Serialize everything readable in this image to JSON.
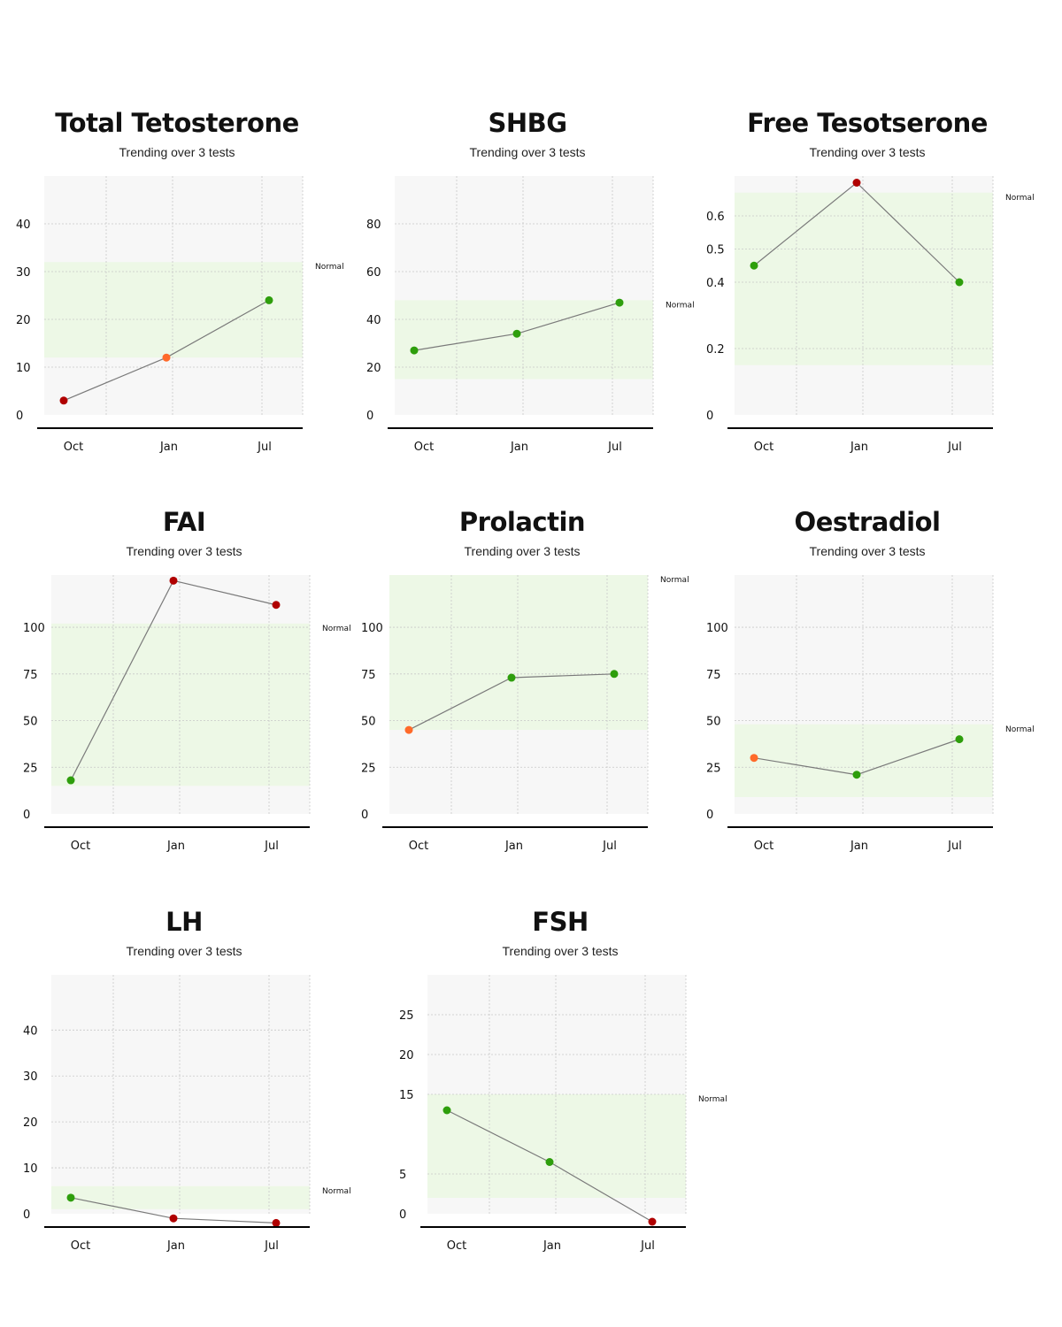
{
  "colors": {
    "plot_bg": "#f7f7f7",
    "normal_band": "#edf8e6",
    "grid": "#c8c8c8",
    "line": "#7a7a7a",
    "axis": "#000000",
    "status": {
      "normal": "#2e9e0c",
      "borderline": "#ff6a2a",
      "high": "#b00000"
    }
  },
  "chart_data": [
    {
      "type": "line",
      "title": "Total Tetosterone",
      "subtitle": "Trending over 3 tests",
      "categories": [
        "Oct",
        "Jan",
        "Jul"
      ],
      "yticks": [
        0,
        10,
        20,
        30,
        40
      ],
      "ylim": [
        0,
        50
      ],
      "grid": true,
      "normal_range": [
        12,
        32
      ],
      "normal_label": "Normal",
      "points": [
        {
          "x": "Oct",
          "y": 3,
          "status": "high"
        },
        {
          "x": "Jan",
          "y": 12,
          "status": "borderline"
        },
        {
          "x": "Jul",
          "y": 24,
          "status": "normal"
        }
      ]
    },
    {
      "type": "line",
      "title": "SHBG",
      "subtitle": "Trending over 3 tests",
      "categories": [
        "Oct",
        "Jan",
        "Jul"
      ],
      "yticks": [
        0,
        20,
        40,
        60,
        80
      ],
      "ylim": [
        0,
        100
      ],
      "grid": true,
      "normal_range": [
        15,
        48
      ],
      "normal_label": "Normal",
      "points": [
        {
          "x": "Oct",
          "y": 27,
          "status": "normal"
        },
        {
          "x": "Jan",
          "y": 34,
          "status": "normal"
        },
        {
          "x": "Jul",
          "y": 47,
          "status": "normal"
        }
      ]
    },
    {
      "type": "line",
      "title": "Free Tesotserone",
      "subtitle": "Trending over 3 tests",
      "categories": [
        "Oct",
        "Jan",
        "Jul"
      ],
      "yticks": [
        0,
        0.2,
        0.4,
        0.5,
        0.6
      ],
      "ylim": [
        0,
        0.72
      ],
      "grid": true,
      "normal_range": [
        0.15,
        0.67
      ],
      "normal_label": "Normal",
      "points": [
        {
          "x": "Oct",
          "y": 0.45,
          "status": "normal"
        },
        {
          "x": "Jan",
          "y": 0.7,
          "status": "high"
        },
        {
          "x": "Jul",
          "y": 0.4,
          "status": "normal"
        }
      ]
    },
    {
      "type": "line",
      "title": "FAI",
      "subtitle": "Trending over 3 tests",
      "categories": [
        "Oct",
        "Jan",
        "Jul"
      ],
      "yticks": [
        0,
        25,
        50,
        75,
        100
      ],
      "ylim": [
        0,
        128
      ],
      "grid": true,
      "normal_range": [
        15,
        102
      ],
      "normal_label": "Normal",
      "points": [
        {
          "x": "Oct",
          "y": 18,
          "status": "normal"
        },
        {
          "x": "Jan",
          "y": 125,
          "status": "high"
        },
        {
          "x": "Jul",
          "y": 112,
          "status": "high"
        }
      ]
    },
    {
      "type": "line",
      "title": "Prolactin",
      "subtitle": "Trending over 3 tests",
      "categories": [
        "Oct",
        "Jan",
        "Jul"
      ],
      "yticks": [
        0,
        25,
        50,
        75,
        100
      ],
      "ylim": [
        0,
        128
      ],
      "grid": true,
      "normal_range": [
        45,
        128
      ],
      "normal_label": "Normal",
      "points": [
        {
          "x": "Oct",
          "y": 45,
          "status": "borderline"
        },
        {
          "x": "Jan",
          "y": 73,
          "status": "normal"
        },
        {
          "x": "Jul",
          "y": 75,
          "status": "normal"
        }
      ]
    },
    {
      "type": "line",
      "title": "Oestradiol",
      "subtitle": "Trending over 3 tests",
      "categories": [
        "Oct",
        "Jan",
        "Jul"
      ],
      "yticks": [
        0,
        25,
        50,
        75,
        100
      ],
      "ylim": [
        0,
        128
      ],
      "grid": true,
      "normal_range": [
        9,
        48
      ],
      "normal_label": "Normal",
      "points": [
        {
          "x": "Oct",
          "y": 30,
          "status": "borderline"
        },
        {
          "x": "Jan",
          "y": 21,
          "status": "normal"
        },
        {
          "x": "Jul",
          "y": 40,
          "status": "normal"
        }
      ]
    },
    {
      "type": "line",
      "title": "LH",
      "subtitle": "Trending over 3 tests",
      "categories": [
        "Oct",
        "Jan",
        "Jul"
      ],
      "yticks": [
        0,
        10,
        20,
        30,
        40
      ],
      "ylim": [
        0,
        52
      ],
      "grid": true,
      "normal_range": [
        1,
        6
      ],
      "normal_label": "Normal",
      "points": [
        {
          "x": "Oct",
          "y": 3.5,
          "status": "normal"
        },
        {
          "x": "Jan",
          "y": -1,
          "status": "high"
        },
        {
          "x": "Jul",
          "y": -2,
          "status": "high"
        }
      ]
    },
    {
      "type": "line",
      "title": "FSH",
      "subtitle": "Trending over 3 tests",
      "categories": [
        "Oct",
        "Jan",
        "Jul"
      ],
      "yticks": [
        0,
        5,
        15,
        20,
        25
      ],
      "ylim": [
        0,
        30
      ],
      "grid": true,
      "normal_range": [
        2,
        15
      ],
      "normal_label": "Normal",
      "points": [
        {
          "x": "Oct",
          "y": 13,
          "status": "normal"
        },
        {
          "x": "Jan",
          "y": 6.5,
          "status": "normal"
        },
        {
          "x": "Jul",
          "y": -1,
          "status": "high"
        }
      ]
    }
  ]
}
